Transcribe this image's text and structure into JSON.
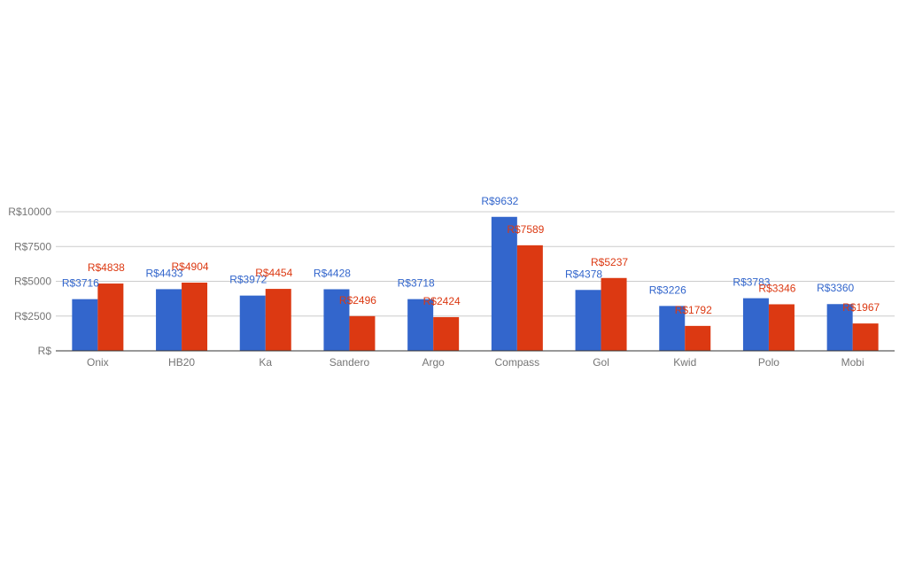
{
  "chart_data": {
    "type": "bar",
    "categories": [
      "Onix",
      "HB20",
      "Ka",
      "Sandero",
      "Argo",
      "Compass",
      "Gol",
      "Kwid",
      "Polo",
      "Mobi"
    ],
    "series": [
      {
        "color": "#3366cc",
        "values": [
          3716,
          4433,
          3972,
          4428,
          3718,
          9632,
          4378,
          3226,
          3783,
          3360
        ],
        "labels": [
          "R$3716",
          "R$4433",
          "R$3972",
          "R$4428",
          "R$3718",
          "R$9632",
          "R$4378",
          "R$3226",
          "R$3783",
          "R$3360"
        ]
      },
      {
        "color": "#dc3912",
        "values": [
          4838,
          4904,
          4454,
          2496,
          2424,
          7589,
          5237,
          1792,
          3346,
          1967
        ],
        "labels": [
          "R$4838",
          "R$4904",
          "R$4454",
          "R$2496",
          "R$2424",
          "R$7589",
          "R$5237",
          "R$1792",
          "R$3346",
          "R$1967"
        ]
      }
    ],
    "ylim": [
      0,
      10000
    ],
    "yticks": [
      {
        "value": 0,
        "label": "R$"
      },
      {
        "value": 2500,
        "label": "R$2500"
      },
      {
        "value": 5000,
        "label": "R$5000"
      },
      {
        "value": 7500,
        "label": "R$7500"
      },
      {
        "value": 10000,
        "label": "R$10000"
      }
    ],
    "grid": true,
    "legend": "none"
  }
}
